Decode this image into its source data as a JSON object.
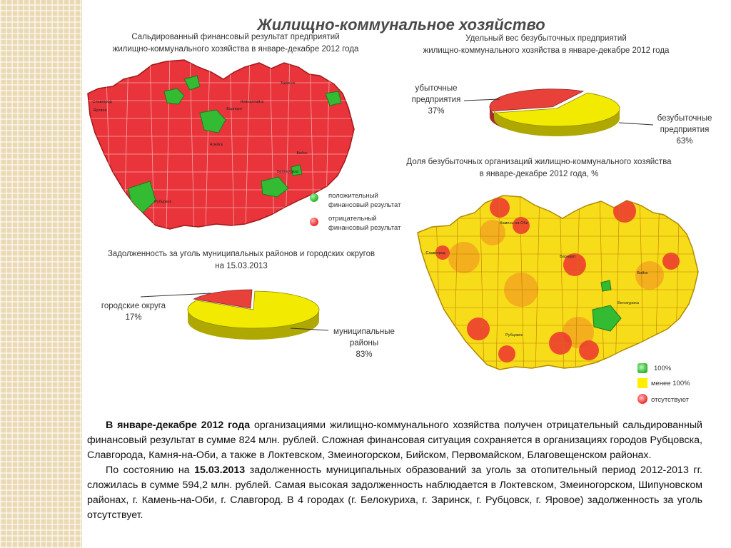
{
  "title": "Жилищно-коммунальное хозяйство",
  "map1": {
    "caption_line1": "Сальдированный финансовый результат предприятий",
    "caption_line2": "жилищно-коммунального хозяйства в январе-декабре 2012 года",
    "legend": [
      {
        "label_line1": "положительный",
        "label_line2": "финансовый результат",
        "color": "#33bb33"
      },
      {
        "label_line1": "отрицательный",
        "label_line2": "финансовый результат",
        "color": "#ee3333"
      }
    ],
    "district_labels": [
      "Барнаул",
      "Заринск",
      "Новоалтайск",
      "Рубцовск",
      "Алейск",
      "Бийск",
      "Славгород",
      "Яровое",
      "Белокуриха"
    ]
  },
  "map2": {
    "caption_line1": "Доля безубыточных организаций жилищно-коммунального хозяйства",
    "caption_line2": "в январе-декабре 2012 года, %",
    "legend": [
      {
        "label": "100%",
        "color": "#33bb33"
      },
      {
        "label": "менее 100%",
        "color": "#ffee00"
      },
      {
        "label": "отсутствуют",
        "color": "#ee3333"
      }
    ],
    "district_labels": [
      "Барнаул",
      "Камень-на-Оби",
      "Бийск",
      "Славгород",
      "Рубцовск",
      "Белокуриха"
    ]
  },
  "chart_data": [
    {
      "type": "pie",
      "title_line1": "Удельный вес безубыточных предприятий",
      "title_line2": "жилищно-коммунального хозяйства в январе-декабре 2012 года",
      "slices": [
        {
          "label_line1": "убыточные",
          "label_line2": "предприятия",
          "value": 37,
          "value_label": "37%",
          "color": "#e8413a"
        },
        {
          "label_line1": "безубыточные",
          "label_line2": "предприятия",
          "value": 63,
          "value_label": "63%",
          "color": "#f2ea00"
        }
      ]
    },
    {
      "type": "pie",
      "title_line1": "Задолженность за уголь муниципальных районов и городских округов",
      "title_line2": "на 15.03.2013",
      "slices": [
        {
          "label_line1": "городские округа",
          "label_line2": "",
          "value": 17,
          "value_label": "17%",
          "color": "#e8413a"
        },
        {
          "label_line1": "муниципальные",
          "label_line2": "районы",
          "value": 83,
          "value_label": "83%",
          "color": "#f2ea00"
        }
      ]
    }
  ],
  "text": {
    "p1_bold": "В январе-декабре 2012 года",
    "p1_rest": " организациями жилищно-коммунального хозяйства получен отрицательный сальдированный финансовый результат в сумме 824 млн. рублей. Сложная финансовая ситуация сохраняется в организациях городов Рубцовска, Славгорода, Камня-на-Оби, а также в Локтевском, Змеиногорском, Бийском, Первомайском, Благовещенском районах.",
    "p2_start": "По состоянию на ",
    "p2_bold": "15.03.2013",
    "p2_rest": " задолженность муниципальных образований за уголь за отопительный период 2012-2013 гг. сложилась в сумме 594,2 млн. рублей. Самая высокая задолженность наблюдается в Локтевском, Змеиногорском, Шипуновском районах, г. Камень-на-Оби, г. Славгород. В 4 городах (г. Белокуриха, г. Заринск, г. Рубцовск, г. Яровое) задолженность за уголь отсутствует."
  }
}
